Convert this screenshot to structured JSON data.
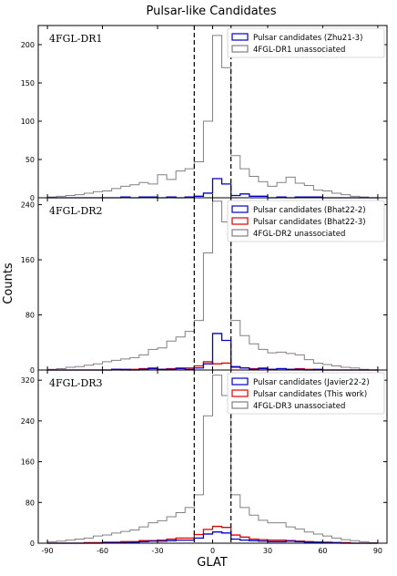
{
  "figure": {
    "title": "Pulsar-like Candidates",
    "xlabel": "GLAT",
    "ylabel": "Counts"
  },
  "chart_data": [
    {
      "type": "histogram",
      "panel_label": "4FGL-DR1",
      "xlim": [
        -95,
        95
      ],
      "ylim": [
        0,
        225
      ],
      "xticks": [
        -90,
        -60,
        -30,
        0,
        30,
        60,
        90
      ],
      "yticks": [
        0,
        50,
        100,
        150,
        200
      ],
      "bin_edges": [
        -90,
        -85,
        -80,
        -75,
        -70,
        -65,
        -60,
        -55,
        -50,
        -45,
        -40,
        -35,
        -30,
        -25,
        -20,
        -15,
        -10,
        -5,
        0,
        5,
        10,
        15,
        20,
        25,
        30,
        35,
        40,
        45,
        50,
        55,
        60,
        65,
        70,
        75,
        80,
        85,
        90
      ],
      "reference_lines": [
        -10,
        10
      ],
      "legend_position": "top-right",
      "series": [
        {
          "name": "Pulsar candidates (Zhu21-3)",
          "color": "#0000cc",
          "values": [
            0,
            0,
            0,
            0,
            0,
            0,
            0,
            0,
            1,
            0,
            1,
            1,
            0,
            1,
            0,
            1,
            2,
            6,
            25,
            18,
            3,
            5,
            2,
            2,
            0,
            1,
            0,
            1,
            1,
            1,
            0,
            0,
            0,
            0,
            0,
            0
          ]
        },
        {
          "name": "4FGL-DR1 unassociated",
          "color": "#808080",
          "values": [
            1,
            2,
            3,
            4,
            6,
            8,
            9,
            12,
            15,
            17,
            20,
            18,
            30,
            24,
            35,
            38,
            47,
            100,
            212,
            170,
            55,
            38,
            28,
            21,
            15,
            20,
            27,
            19,
            16,
            10,
            9,
            6,
            4,
            2,
            1,
            0
          ]
        }
      ]
    },
    {
      "type": "histogram",
      "panel_label": "4FGL-DR2",
      "xlim": [
        -95,
        95
      ],
      "ylim": [
        0,
        250
      ],
      "xticks": [
        -90,
        -60,
        -30,
        0,
        30,
        60,
        90
      ],
      "yticks": [
        0,
        80,
        160,
        240
      ],
      "bin_edges": [
        -90,
        -85,
        -80,
        -75,
        -70,
        -65,
        -60,
        -55,
        -50,
        -45,
        -40,
        -35,
        -30,
        -25,
        -20,
        -15,
        -10,
        -5,
        0,
        5,
        10,
        15,
        20,
        25,
        30,
        35,
        40,
        45,
        50,
        55,
        60,
        65,
        70,
        75,
        80,
        85,
        90
      ],
      "reference_lines": [
        -10,
        10
      ],
      "legend_position": "top-right",
      "series": [
        {
          "name": "Pulsar candidates (Bhat22-2)",
          "color": "#0000cc",
          "values": [
            0,
            0,
            0,
            0,
            0,
            0,
            0,
            1,
            1,
            0,
            1,
            2,
            1,
            1,
            2,
            1,
            3,
            9,
            53,
            43,
            5,
            3,
            1,
            2,
            1,
            2,
            1,
            1,
            0,
            1,
            0,
            0,
            0,
            0,
            0,
            0
          ]
        },
        {
          "name": "Pulsar candidates (Bhat22-3)",
          "color": "#e00000",
          "values": [
            0,
            0,
            0,
            0,
            0,
            0,
            0,
            1,
            0,
            1,
            2,
            3,
            1,
            2,
            3,
            3,
            6,
            12,
            9,
            10,
            4,
            3,
            2,
            3,
            1,
            2,
            1,
            2,
            1,
            0,
            0,
            0,
            0,
            0,
            0,
            0
          ]
        },
        {
          "name": "4FGL-DR2 unassociated",
          "color": "#808080",
          "values": [
            1,
            2,
            4,
            5,
            7,
            9,
            12,
            14,
            16,
            18,
            22,
            30,
            32,
            42,
            48,
            56,
            72,
            170,
            245,
            215,
            72,
            50,
            38,
            30,
            25,
            26,
            24,
            22,
            15,
            10,
            8,
            6,
            4,
            3,
            1,
            0
          ]
        }
      ]
    },
    {
      "type": "histogram",
      "panel_label": "4FGL-DR3",
      "xlim": [
        -95,
        95
      ],
      "ylim": [
        0,
        340
      ],
      "xticks": [
        -90,
        -60,
        -30,
        0,
        30,
        60,
        90
      ],
      "yticks": [
        0,
        80,
        160,
        240,
        320
      ],
      "bin_edges": [
        -90,
        -85,
        -80,
        -75,
        -70,
        -65,
        -60,
        -55,
        -50,
        -45,
        -40,
        -35,
        -30,
        -25,
        -20,
        -15,
        -10,
        -5,
        0,
        5,
        10,
        15,
        20,
        25,
        30,
        35,
        40,
        45,
        50,
        55,
        60,
        65,
        70,
        75,
        80,
        85,
        90
      ],
      "reference_lines": [
        -10,
        10
      ],
      "legend_position": "top-right",
      "series": [
        {
          "name": "Pulsar candidates (Javier22-2)",
          "color": "#0000cc",
          "values": [
            0,
            0,
            0,
            0,
            0,
            0,
            1,
            1,
            1,
            2,
            3,
            4,
            4,
            5,
            6,
            6,
            10,
            18,
            22,
            20,
            8,
            6,
            5,
            4,
            3,
            3,
            4,
            3,
            2,
            2,
            1,
            1,
            0,
            0,
            0,
            0
          ]
        },
        {
          "name": "Pulsar candidates (This work)",
          "color": "#e00000",
          "values": [
            0,
            0,
            0,
            0,
            1,
            1,
            2,
            2,
            3,
            3,
            5,
            5,
            6,
            8,
            10,
            10,
            17,
            27,
            33,
            31,
            16,
            12,
            8,
            7,
            6,
            6,
            5,
            4,
            3,
            2,
            2,
            1,
            1,
            0,
            0,
            0
          ]
        },
        {
          "name": "4FGL-DR3 unassociated",
          "color": "#808080",
          "values": [
            3,
            4,
            6,
            8,
            10,
            14,
            16,
            20,
            23,
            26,
            32,
            40,
            44,
            52,
            60,
            70,
            95,
            250,
            330,
            290,
            95,
            70,
            55,
            45,
            40,
            40,
            32,
            28,
            22,
            18,
            14,
            10,
            7,
            5,
            3,
            1
          ]
        }
      ]
    }
  ]
}
